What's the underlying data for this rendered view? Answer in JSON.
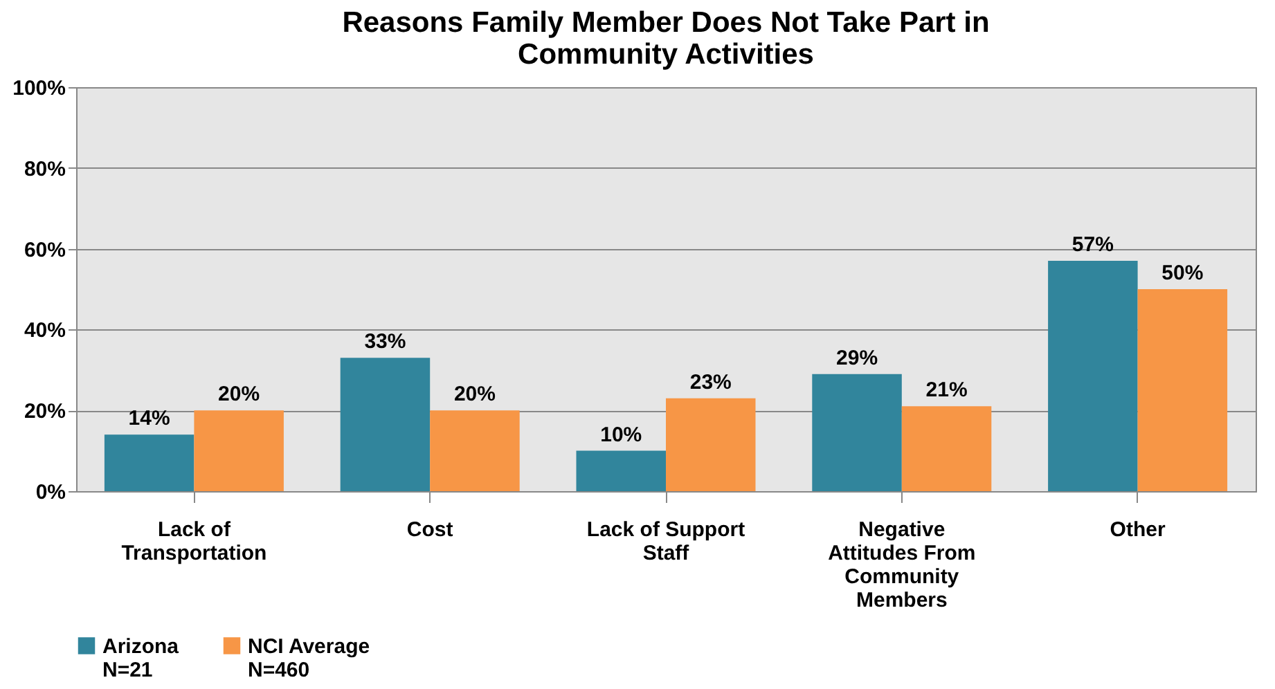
{
  "chart_data": {
    "type": "bar",
    "title": "Reasons Family Member Does Not Take Part in\nCommunity Activities",
    "categories": [
      "Lack of\nTransportation",
      "Cost",
      "Lack of Support\nStaff",
      "Negative\nAttitudes From\nCommunity\nMembers",
      "Other"
    ],
    "series": [
      {
        "name": "Arizona\nN=21",
        "color": "#31859c",
        "values": [
          14,
          33,
          10,
          29,
          57
        ],
        "value_labels": [
          "14%",
          "33%",
          "10%",
          "29%",
          "57%"
        ]
      },
      {
        "name": "NCI Average\nN=460",
        "color": "#f79646",
        "values": [
          20,
          20,
          23,
          21,
          50
        ],
        "value_labels": [
          "20%",
          "20%",
          "23%",
          "21%",
          "50%"
        ]
      }
    ],
    "ylim": [
      0,
      100
    ],
    "yticks": [
      {
        "value": 0,
        "label": "0%"
      },
      {
        "value": 20,
        "label": "20%"
      },
      {
        "value": 40,
        "label": "40%"
      },
      {
        "value": 60,
        "label": "60%"
      },
      {
        "value": 80,
        "label": "80%"
      },
      {
        "value": 100,
        "label": "100%"
      }
    ],
    "grid": "y",
    "legend": "bottom"
  }
}
